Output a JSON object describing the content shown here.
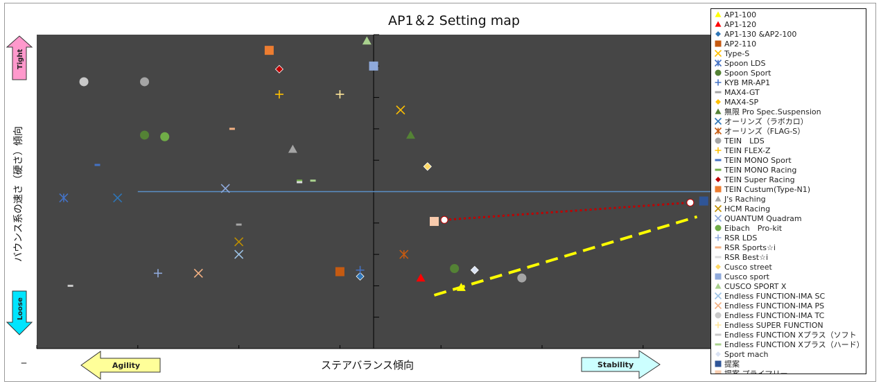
{
  "chart_data": {
    "type": "scatter",
    "title": "AP1＆2 Setting map",
    "xlabel": "ステアバランス傾向",
    "ylabel": "バウンス系の速さ（硬さ）傾向",
    "xlim": [
      -5,
      5
    ],
    "ylim": [
      -5,
      5
    ],
    "grid": false,
    "legend_position": "right",
    "background": "#464646",
    "series": [
      {
        "name": "AP1-100",
        "marker": "triangle",
        "color": "#ffff00",
        "points": [
          [
            1.3,
            -3.05
          ]
        ]
      },
      {
        "name": "AP1-120",
        "marker": "triangle",
        "color": "#ff0000",
        "points": [
          [
            0.7,
            -2.75
          ]
        ]
      },
      {
        "name": "AP1-130 &AP2-100",
        "marker": "diamond",
        "color": "#2e75b6",
        "points": [
          [
            -0.2,
            -2.7
          ]
        ]
      },
      {
        "name": "AP2-110",
        "marker": "square",
        "color": "#c55a11",
        "points": [
          [
            -0.5,
            -2.55
          ]
        ]
      },
      {
        "name": "Type-S",
        "marker": "x",
        "color": "#ffc000",
        "points": [
          [
            0.4,
            2.6
          ]
        ]
      },
      {
        "name": "Spoon LDS",
        "marker": "star",
        "color": "#4472c4",
        "points": [
          [
            -4.6,
            -0.2
          ]
        ]
      },
      {
        "name": "Spoon Sport",
        "marker": "circle",
        "color": "#548235",
        "points": [
          [
            -3.4,
            1.8
          ],
          [
            1.2,
            -2.45
          ]
        ]
      },
      {
        "name": "KYB MR-AP1",
        "marker": "plus",
        "color": "#4472c4",
        "points": [
          [
            -0.2,
            -2.5
          ]
        ]
      },
      {
        "name": "MAX4-GT",
        "marker": "dash",
        "color": "#a5a5a5",
        "points": [
          [
            -2.0,
            -1.05
          ]
        ]
      },
      {
        "name": "MAX4-SP",
        "marker": "diamond",
        "color": "#ffc000",
        "points": [
          [
            0.8,
            0.8
          ]
        ]
      },
      {
        "name": "無限 Pro Spec.Suspension",
        "marker": "triangle",
        "color": "#548235",
        "points": [
          [
            0.55,
            1.8
          ]
        ]
      },
      {
        "name": "オーリンズ（ラボカロ）",
        "marker": "x",
        "color": "#2e75b6",
        "points": [
          [
            -3.8,
            -0.2
          ]
        ]
      },
      {
        "name": "オーリンズ（FLAG-S）",
        "marker": "star",
        "color": "#c55a11",
        "points": [
          [
            0.45,
            -2.0
          ]
        ]
      },
      {
        "name": "TEIN　LDS",
        "marker": "circle",
        "color": "#a5a5a5",
        "points": [
          [
            -3.4,
            3.5
          ],
          [
            2.2,
            -2.75
          ]
        ]
      },
      {
        "name": "TEIN FLEX-Z",
        "marker": "plus",
        "color": "#ffc000",
        "points": [
          [
            -1.4,
            3.1
          ]
        ]
      },
      {
        "name": "TEIN MONO Sport",
        "marker": "dash",
        "color": "#4472c4",
        "points": [
          [
            -4.1,
            0.85
          ]
        ]
      },
      {
        "name": "TEIN MONO Racing",
        "marker": "dash",
        "color": "#70ad47",
        "points": [
          [
            -1.1,
            0.35
          ]
        ]
      },
      {
        "name": "TEIN Super Racing",
        "marker": "diamond",
        "color": "#c00000",
        "points": [
          [
            -1.4,
            3.9
          ]
        ]
      },
      {
        "name": "TEIN Custum(Type-N1)",
        "marker": "square",
        "color": "#ed7d31",
        "points": [
          [
            -1.55,
            4.5
          ]
        ]
      },
      {
        "name": "J's Raching",
        "marker": "triangle",
        "color": "#a5a5a5",
        "points": [
          [
            -1.2,
            1.35
          ]
        ]
      },
      {
        "name": "HCM Racing",
        "marker": "x",
        "color": "#bf8f00",
        "points": [
          [
            -2.0,
            -1.6
          ]
        ]
      },
      {
        "name": "QUANTUM Quadram",
        "marker": "x",
        "color": "#8faadc",
        "points": [
          [
            -2.2,
            0.1
          ]
        ]
      },
      {
        "name": "Eibach　Pro-kit",
        "marker": "circle",
        "color": "#70ad47",
        "points": [
          [
            -3.1,
            1.75
          ]
        ]
      },
      {
        "name": "RSR LDS",
        "marker": "plus",
        "color": "#8faadc",
        "points": [
          [
            -3.2,
            -2.6
          ]
        ]
      },
      {
        "name": "RSR Sports☆i",
        "marker": "dash",
        "color": "#f4b183",
        "points": [
          [
            -2.1,
            2.0
          ]
        ]
      },
      {
        "name": "RSR Best☆i",
        "marker": "dash",
        "color": "#dbdbdb",
        "points": [
          [
            -1.1,
            0.3
          ]
        ]
      },
      {
        "name": "Cusco street",
        "marker": "diamond",
        "color": "#ffd966",
        "points": [
          [
            0.8,
            0.8
          ]
        ]
      },
      {
        "name": "Cusco sport",
        "marker": "square",
        "color": "#8faadc",
        "points": [
          [
            0.0,
            4.0
          ]
        ]
      },
      {
        "name": "CUSCO SPORT X",
        "marker": "triangle",
        "color": "#a9d18e",
        "points": [
          [
            -0.1,
            4.8
          ]
        ]
      },
      {
        "name": "Endless FUNCTION-IMA SC",
        "marker": "x",
        "color": "#9dc3e6",
        "points": [
          [
            -2.0,
            -2.0
          ]
        ]
      },
      {
        "name": "Endless FUNCTION-IMA PS",
        "marker": "x",
        "color": "#f4b183",
        "points": [
          [
            -2.6,
            -2.6
          ]
        ]
      },
      {
        "name": "Endless FUNCTION-IMA TC",
        "marker": "circle",
        "color": "#c9c9c9",
        "points": [
          [
            -4.3,
            3.5
          ]
        ]
      },
      {
        "name": "Endless SUPER FUNCTION",
        "marker": "plus",
        "color": "#ffe699",
        "points": [
          [
            -0.5,
            3.1
          ]
        ]
      },
      {
        "name": "Endless FUNCTION Xプラス（ソフト",
        "marker": "dash",
        "color": "#c9c9c9",
        "points": [
          [
            -4.5,
            -3.0
          ]
        ]
      },
      {
        "name": "Endless FUNCTION Xプラス（ハード）",
        "marker": "dash",
        "color": "#a9d18e",
        "points": [
          [
            -0.9,
            0.35
          ]
        ]
      },
      {
        "name": "Sport mach",
        "marker": "diamond",
        "color": "#dae3f3",
        "points": [
          [
            1.5,
            -2.5
          ]
        ]
      },
      {
        "name": "提案",
        "marker": "square",
        "color": "#2f5597",
        "points": [
          [
            4.9,
            -0.3
          ]
        ]
      },
      {
        "name": "提案 プライマリー",
        "marker": "square",
        "color": "#f8cbad",
        "points": [
          [
            0.9,
            -0.95
          ]
        ]
      }
    ],
    "annotations": {
      "trend_dashed_yellow": {
        "color": "#ffff00",
        "points": [
          [
            0.9,
            -3.3
          ],
          [
            4.8,
            -0.8
          ]
        ]
      },
      "trend_dotted_red": {
        "color": "#c00000",
        "points": [
          [
            1.05,
            -0.9
          ],
          [
            4.7,
            -0.35
          ]
        ]
      },
      "hline_blue": {
        "color": "#5b8fc7",
        "y": 0.0,
        "from_x": -3.5
      }
    },
    "y_arrows": {
      "top": "Tight",
      "bottom": "Loose"
    },
    "x_arrows": {
      "left": "Agility",
      "right": "Stability"
    }
  },
  "ui": {
    "dash_mark": "‒"
  }
}
